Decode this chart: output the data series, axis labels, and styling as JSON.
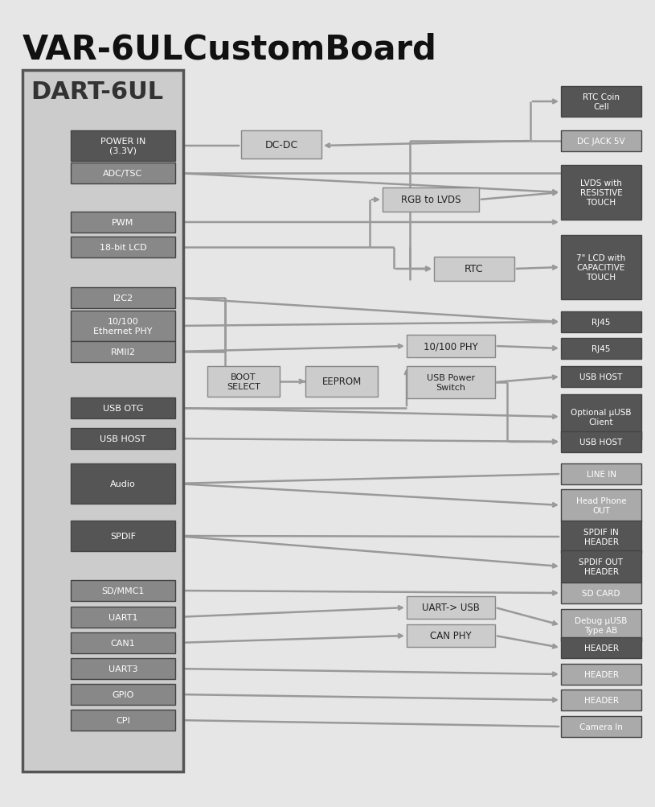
{
  "title": "VAR-6ULCustomBoard",
  "bg_color": "#e6e6e6",
  "left_blocks": [
    {
      "label": "POWER IN\n(3.3V)",
      "row": 0,
      "dark": true
    },
    {
      "label": "ADC/TSC",
      "row": 1,
      "dark": false
    },
    {
      "label": "PWM",
      "row": 2,
      "dark": false
    },
    {
      "label": "18-bit LCD",
      "row": 3,
      "dark": false
    },
    {
      "label": "I2C2",
      "row": 4,
      "dark": false
    },
    {
      "label": "10/100\nEthernet PHY",
      "row": 5,
      "dark": false
    },
    {
      "label": "RMII2",
      "row": 6,
      "dark": false
    },
    {
      "label": "USB OTG",
      "row": 7,
      "dark": true
    },
    {
      "label": "USB HOST",
      "row": 8,
      "dark": true
    },
    {
      "label": "Audio",
      "row": 9,
      "dark": true
    },
    {
      "label": "SPDIF",
      "row": 10,
      "dark": true
    },
    {
      "label": "SD/MMC1",
      "row": 11,
      "dark": false
    },
    {
      "label": "UART1",
      "row": 12,
      "dark": false
    },
    {
      "label": "CAN1",
      "row": 13,
      "dark": false
    },
    {
      "label": "UART3",
      "row": 14,
      "dark": false
    },
    {
      "label": "GPIO",
      "row": 15,
      "dark": false
    },
    {
      "label": "CPI",
      "row": 16,
      "dark": false
    }
  ],
  "right_blocks": [
    {
      "label": "RTC Coin\nCell",
      "row": 0,
      "dark": true
    },
    {
      "label": "DC JACK 5V",
      "row": 1,
      "dark": false
    },
    {
      "label": "LVDS with\nRESISTIVE\nTOUCH",
      "row": 2,
      "dark": true
    },
    {
      "label": "7\" LCD with\nCAPACITIVE\nTOUCH",
      "row": 3,
      "dark": true
    },
    {
      "label": "RJ45",
      "row": 4,
      "dark": true
    },
    {
      "label": "RJ45",
      "row": 5,
      "dark": true
    },
    {
      "label": "USB HOST",
      "row": 6,
      "dark": true
    },
    {
      "label": "Optional μUSB\nClient",
      "row": 7,
      "dark": true
    },
    {
      "label": "USB HOST",
      "row": 8,
      "dark": true
    },
    {
      "label": "LINE IN",
      "row": 9,
      "dark": false
    },
    {
      "label": "Head Phone\nOUT",
      "row": 10,
      "dark": false
    },
    {
      "label": "SPDIF IN\nHEADER",
      "row": 11,
      "dark": true
    },
    {
      "label": "SPDIF OUT\nHEADER",
      "row": 12,
      "dark": true
    },
    {
      "label": "SD CARD",
      "row": 13,
      "dark": false
    },
    {
      "label": "Debug μUSB\nType AB",
      "row": 14,
      "dark": false
    },
    {
      "label": "HEADER",
      "row": 15,
      "dark": true
    },
    {
      "label": "HEADER",
      "row": 16,
      "dark": false
    },
    {
      "label": "HEADER",
      "row": 17,
      "dark": false
    },
    {
      "label": "Camera In",
      "row": 18,
      "dark": false
    }
  ]
}
